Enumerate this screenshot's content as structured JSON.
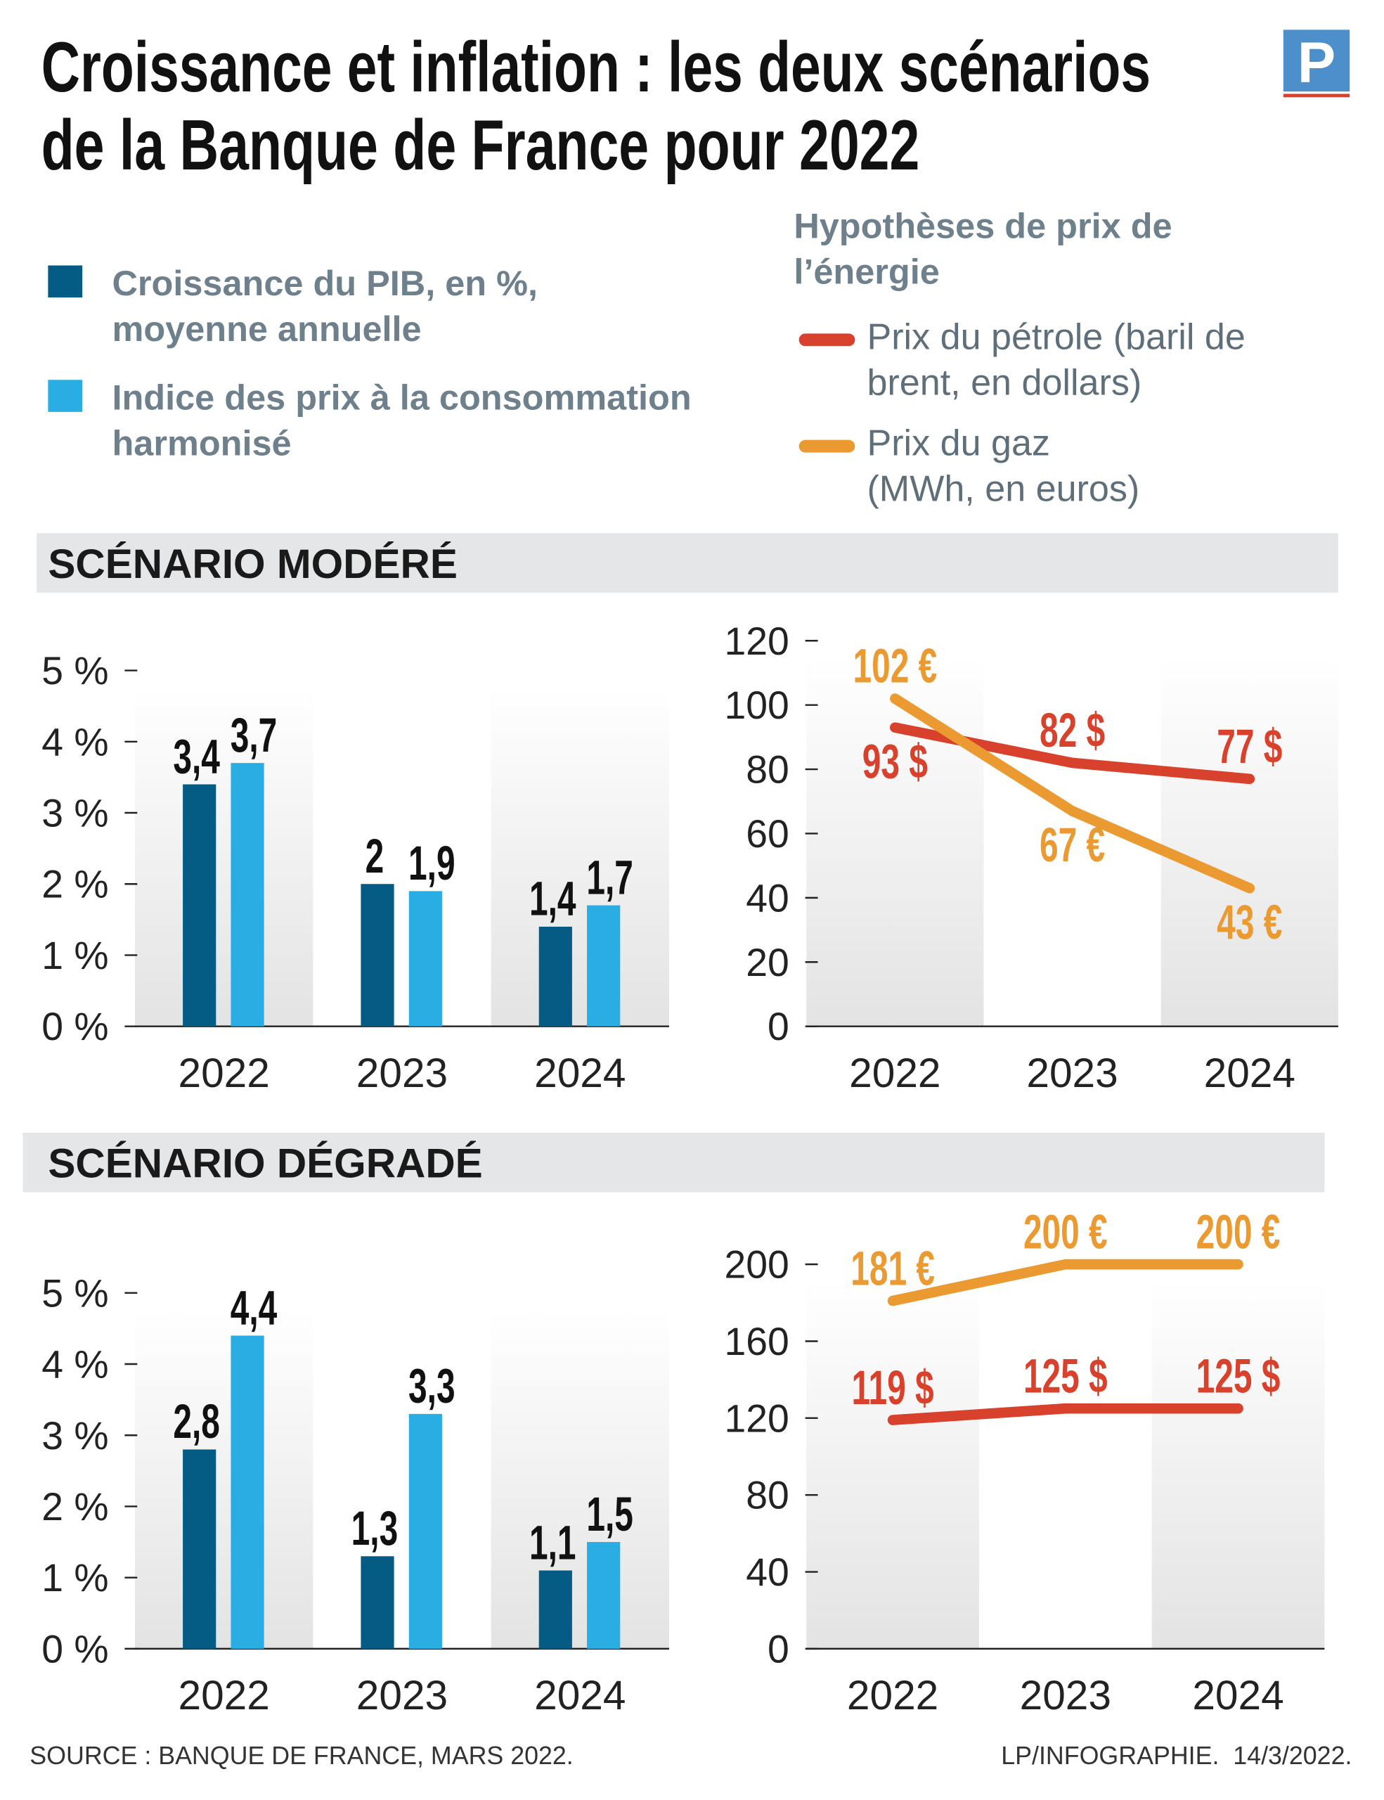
{
  "title_lines": [
    "Croissance et inflation : les deux scénarios",
    "de la Banque de France pour 2022"
  ],
  "logo": "P",
  "energy_legend_title": "Hypothèses de prix de l’énergie",
  "sections": [
    "SCÉNARIO MODÉRÉ",
    "SCÉNARIO DÉGRADÉ"
  ],
  "chart_data": [
    {
      "type": "bar",
      "categories": [
        "2022",
        "2023",
        "2024"
      ],
      "ylim": [
        0,
        5
      ],
      "yticks": [
        {
          "value": 0,
          "label": "0 %"
        },
        {
          "value": 1,
          "label": "1 %"
        },
        {
          "value": 2,
          "label": "2 %"
        },
        {
          "value": 3,
          "label": "3 %"
        },
        {
          "value": 4,
          "label": "4 %"
        },
        {
          "value": 5,
          "label": "5 %"
        }
      ],
      "series": [
        {
          "name": "Croissance du PIB, en %, moyenne annuelle",
          "color": "#045c85",
          "values": [
            3.4,
            2,
            1.4
          ],
          "value_labels": [
            "3,4",
            "2",
            "1,4"
          ]
        },
        {
          "name": "Indice des prix à la consommation harmonisé",
          "color": "#2aade3",
          "values": [
            3.7,
            1.9,
            1.7
          ],
          "value_labels": [
            "3,7",
            "1,9",
            "1,7"
          ]
        }
      ]
    },
    {
      "type": "line",
      "categories": [
        "2022",
        "2023",
        "2024"
      ],
      "ylim": [
        0,
        120
      ],
      "yticks": [
        0,
        20,
        40,
        60,
        80,
        100,
        120
      ],
      "series": [
        {
          "name": "Prix du pétrole (baril de brent, en dollars)",
          "color": "#d8412b",
          "values": [
            93,
            82,
            77
          ],
          "value_labels": [
            "93 $",
            "82 $",
            "77 $"
          ]
        },
        {
          "name": "Prix du gaz (MWh, en euros)",
          "color": "#eb9a31",
          "values": [
            102,
            67,
            43
          ],
          "value_labels": [
            "102 €",
            "67 €",
            "43 €"
          ]
        }
      ]
    },
    {
      "type": "bar",
      "categories": [
        "2022",
        "2023",
        "2024"
      ],
      "ylim": [
        0,
        5
      ],
      "yticks": [
        {
          "value": 0,
          "label": "0 %"
        },
        {
          "value": 1,
          "label": "1 %"
        },
        {
          "value": 2,
          "label": "2 %"
        },
        {
          "value": 3,
          "label": "3 %"
        },
        {
          "value": 4,
          "label": "4 %"
        },
        {
          "value": 5,
          "label": "5 %"
        }
      ],
      "series": [
        {
          "color": "#045c85",
          "values": [
            2.8,
            1.3,
            1.1
          ],
          "value_labels": [
            "2,8",
            "1,3",
            "1,1"
          ]
        },
        {
          "color": "#2aade3",
          "values": [
            4.4,
            3.3,
            1.5
          ],
          "value_labels": [
            "4,4",
            "3,3",
            "1,5"
          ]
        }
      ]
    },
    {
      "type": "line",
      "categories": [
        "2022",
        "2023",
        "2024"
      ],
      "ylim": [
        0,
        200
      ],
      "yticks": [
        0,
        40,
        80,
        120,
        160,
        200
      ],
      "series": [
        {
          "color": "#d8412b",
          "values": [
            119,
            125,
            125
          ],
          "value_labels": [
            "119 $",
            "125 $",
            "125 $"
          ]
        },
        {
          "color": "#eb9a31",
          "values": [
            181,
            200,
            200
          ],
          "value_labels": [
            "181 €",
            "200 €",
            "200 €"
          ]
        }
      ]
    }
  ],
  "source": "SOURCE : BANQUE DE FRANCE, MARS 2022.",
  "credit": "LP/INFOGRAPHIE.  14/3/2022."
}
